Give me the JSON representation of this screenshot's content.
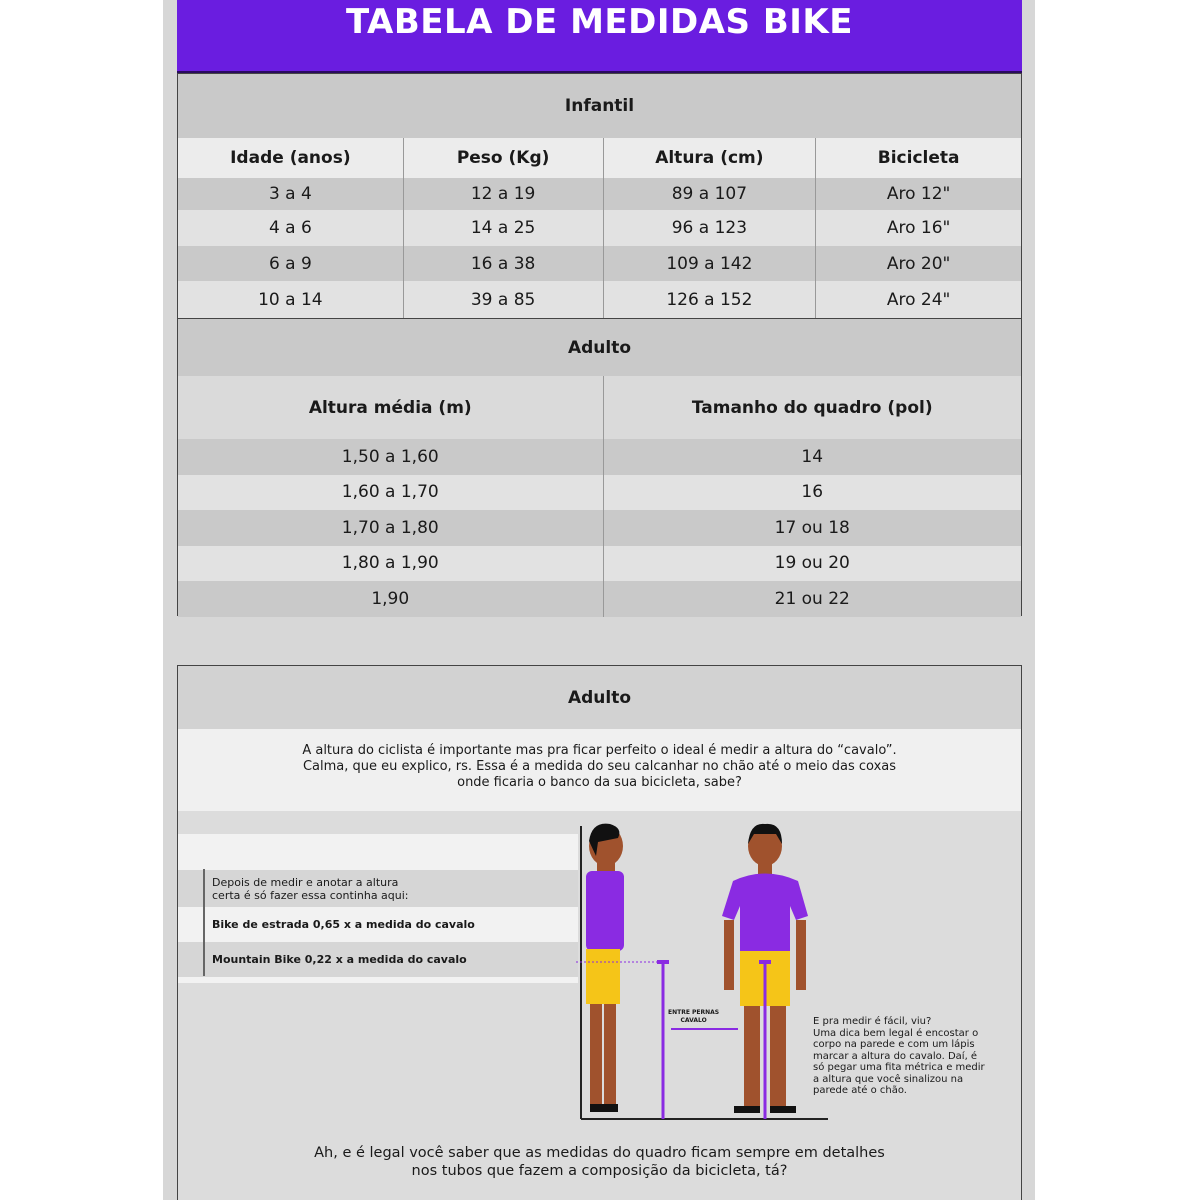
{
  "header": {
    "title": "TABELA DE MEDIDAS BIKE"
  },
  "infantil": {
    "title": "Infantil",
    "columns": [
      "Idade (anos)",
      "Peso (Kg)",
      "Altura (cm)",
      "Bicicleta"
    ],
    "rows": [
      [
        "3 a 4",
        "12 a 19",
        "89 a 107",
        "Aro 12\""
      ],
      [
        "4 a 6",
        "14 a 25",
        "96 a 123",
        "Aro 16\""
      ],
      [
        "6 a 9",
        "16 a 38",
        "109 a 142",
        "Aro 20\""
      ],
      [
        "10 a 14",
        "39 a 85",
        "126 a 152",
        "Aro 24\""
      ]
    ]
  },
  "adulto": {
    "title": "Adulto",
    "columns": [
      "Altura média (m)",
      "Tamanho do quadro (pol)"
    ],
    "rows": [
      [
        "1,50 a 1,60",
        "14"
      ],
      [
        "1,60 a 1,70",
        "16"
      ],
      [
        "1,70 a 1,80",
        "17 ou 18"
      ],
      [
        "1,80 a 1,90",
        "19 ou 20"
      ],
      [
        "1,90",
        "21 ou 22"
      ]
    ]
  },
  "guide": {
    "title": "Adulto",
    "intro": [
      "A altura do ciclista é importante mas pra ficar perfeito o ideal é medir a altura do “cavalo”.",
      "Calma, que eu explico, rs. Essa é a medida do seu calcanhar no chão até o meio das coxas",
      "onde ficaria o banco da sua bicicleta, sabe?"
    ],
    "steps_intro": [
      "Depois de medir e anotar a altura",
      "certa é só fazer essa continha aqui:"
    ],
    "road": "Bike de estrada 0,65 x a medida do cavalo",
    "mtb": "Mountain Bike 0,22 x a medida do cavalo",
    "label": [
      "ENTRE PERNAS",
      "CAVALO"
    ],
    "tip": [
      "E pra medir é fácil, viu?",
      "Uma dica bem legal é encostar o",
      "corpo na parede e com um lápis",
      "marcar a altura do cavalo. Daí, é",
      "só pegar uma fita métrica e medir",
      "a altura que você sinalizou na",
      "parede até o chão."
    ],
    "footer": [
      "Ah, e é legal você saber que as medidas do quadro ficam sempre em detalhes",
      "nos tubos que fazem a composição da bicicleta, tá?"
    ]
  },
  "colors": {
    "purple": "#6a1de0",
    "shorts": "#f5c518",
    "skin": "#a0522d"
  }
}
